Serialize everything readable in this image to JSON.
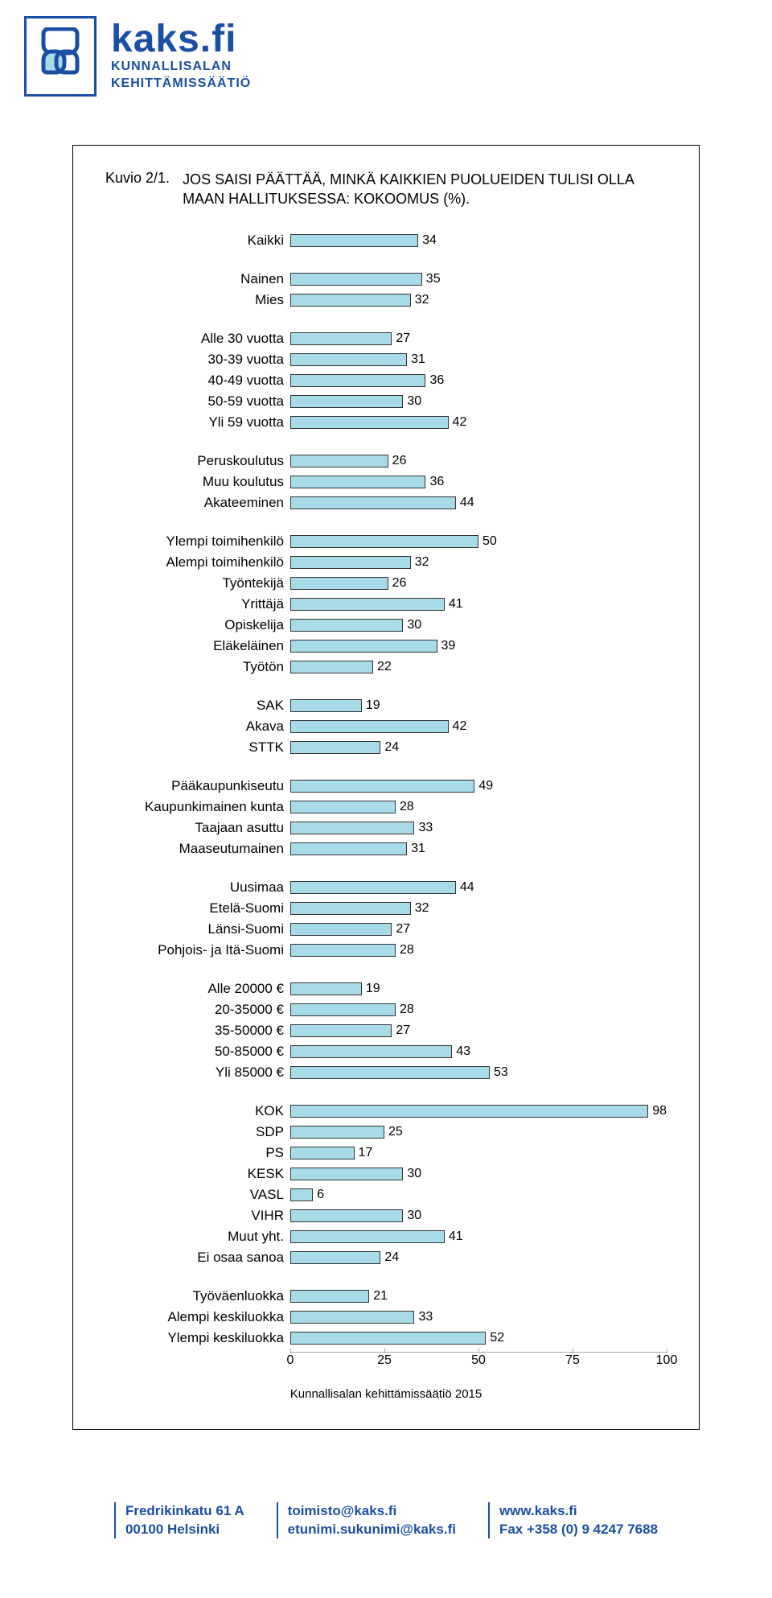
{
  "brand": {
    "title": "kaks.fi",
    "sub1": "KUNNALLISALAN",
    "sub2": "KEHITTÄMISSÄÄTIÖ",
    "logo_color": "#1a4fa3"
  },
  "chart": {
    "type": "bar",
    "title_prefix": "Kuvio 2/1.",
    "title": "JOS SAISI PÄÄTTÄÄ, MINKÄ KAIKKIEN PUOLUEIDEN TULISI OLLA MAAN HALLITUKSESSA: KOKOOMUS (%).",
    "bar_color": "#a7dbe8",
    "bar_border": "#333333",
    "xlim": [
      0,
      100
    ],
    "xticks": [
      0,
      25,
      50,
      75,
      100
    ],
    "label_fontsize": 17,
    "value_fontsize": 16,
    "groups": [
      {
        "rows": [
          {
            "label": "Kaikki",
            "value": 34
          }
        ]
      },
      {
        "rows": [
          {
            "label": "Nainen",
            "value": 35
          },
          {
            "label": "Mies",
            "value": 32
          }
        ]
      },
      {
        "rows": [
          {
            "label": "Alle 30 vuotta",
            "value": 27
          },
          {
            "label": "30-39 vuotta",
            "value": 31
          },
          {
            "label": "40-49 vuotta",
            "value": 36
          },
          {
            "label": "50-59 vuotta",
            "value": 30
          },
          {
            "label": "Yli 59 vuotta",
            "value": 42
          }
        ]
      },
      {
        "rows": [
          {
            "label": "Peruskoulutus",
            "value": 26
          },
          {
            "label": "Muu koulutus",
            "value": 36
          },
          {
            "label": "Akateeminen",
            "value": 44
          }
        ]
      },
      {
        "rows": [
          {
            "label": "Ylempi toimihenkilö",
            "value": 50
          },
          {
            "label": "Alempi toimihenkilö",
            "value": 32
          },
          {
            "label": "Työntekijä",
            "value": 26
          },
          {
            "label": "Yrittäjä",
            "value": 41
          },
          {
            "label": "Opiskelija",
            "value": 30
          },
          {
            "label": "Eläkeläinen",
            "value": 39
          },
          {
            "label": "Työtön",
            "value": 22
          }
        ]
      },
      {
        "rows": [
          {
            "label": "SAK",
            "value": 19
          },
          {
            "label": "Akava",
            "value": 42
          },
          {
            "label": "STTK",
            "value": 24
          }
        ]
      },
      {
        "rows": [
          {
            "label": "Pääkaupunkiseutu",
            "value": 49
          },
          {
            "label": "Kaupunkimainen kunta",
            "value": 28
          },
          {
            "label": "Taajaan asuttu",
            "value": 33
          },
          {
            "label": "Maaseutumainen",
            "value": 31
          }
        ]
      },
      {
        "rows": [
          {
            "label": "Uusimaa",
            "value": 44
          },
          {
            "label": "Etelä-Suomi",
            "value": 32
          },
          {
            "label": "Länsi-Suomi",
            "value": 27
          },
          {
            "label": "Pohjois- ja Itä-Suomi",
            "value": 28
          }
        ]
      },
      {
        "rows": [
          {
            "label": "Alle 20000 €",
            "value": 19
          },
          {
            "label": "20-35000 €",
            "value": 28
          },
          {
            "label": "35-50000 €",
            "value": 27
          },
          {
            "label": "50-85000 €",
            "value": 43
          },
          {
            "label": "Yli 85000 €",
            "value": 53
          }
        ]
      },
      {
        "rows": [
          {
            "label": "KOK",
            "value": 98
          },
          {
            "label": "SDP",
            "value": 25
          },
          {
            "label": "PS",
            "value": 17
          },
          {
            "label": "KESK",
            "value": 30
          },
          {
            "label": "VASL",
            "value": 6
          },
          {
            "label": "VIHR",
            "value": 30
          },
          {
            "label": "Muut yht.",
            "value": 41
          },
          {
            "label": "Ei osaa sanoa",
            "value": 24
          }
        ]
      },
      {
        "rows": [
          {
            "label": "Työväenluokka",
            "value": 21
          },
          {
            "label": "Alempi keskiluokka",
            "value": 33
          },
          {
            "label": "Ylempi keskiluokka",
            "value": 52
          }
        ]
      }
    ],
    "source": "Kunnallisalan kehittämissäätiö 2015"
  },
  "footer": {
    "col1_line1": "Fredrikinkatu 61 A",
    "col1_line2": "00100 Helsinki",
    "col2_line1": "toimisto@kaks.fi",
    "col2_line2": "etunimi.sukunimi@kaks.fi",
    "col3_line1": "www.kaks.fi",
    "col3_line2": "Fax +358 (0) 9 4247 7688"
  }
}
